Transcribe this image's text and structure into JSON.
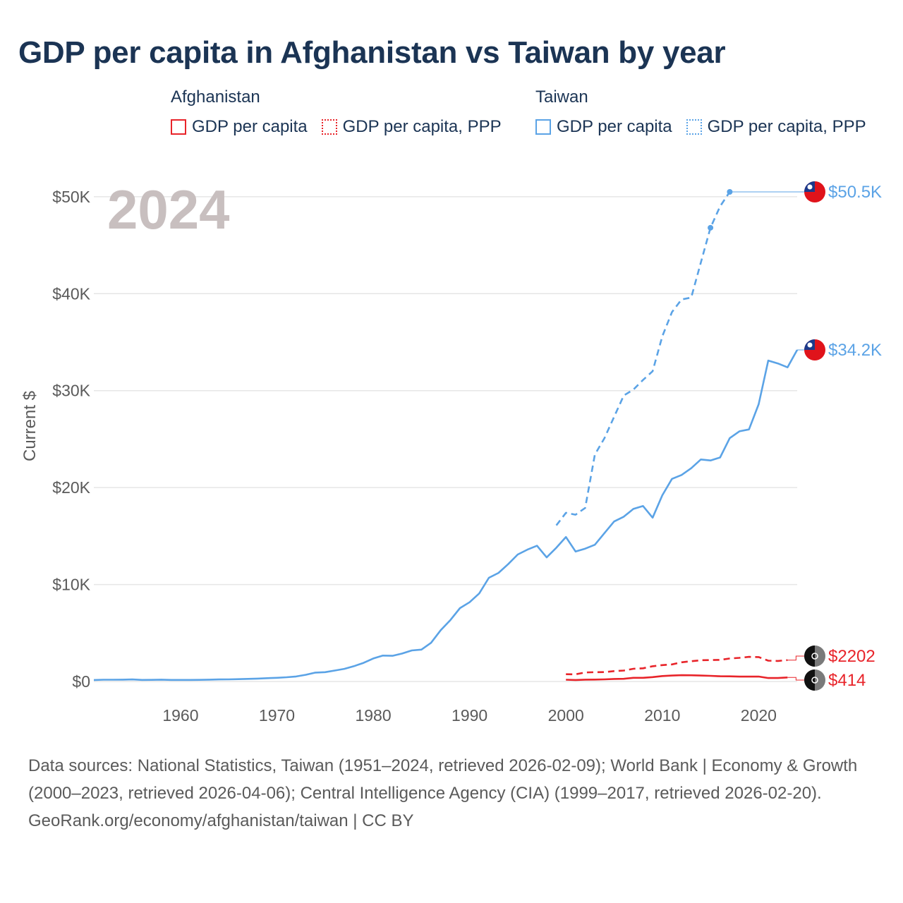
{
  "title": "GDP per capita in Afghanistan vs Taiwan by year",
  "legend": {
    "groups": [
      {
        "name": "Afghanistan",
        "color": "#e8242a",
        "items": [
          {
            "label": "GDP per capita",
            "style": "solid"
          },
          {
            "label": "GDP per capita, PPP",
            "style": "dotted"
          }
        ]
      },
      {
        "name": "Taiwan",
        "color": "#5ba3e6",
        "items": [
          {
            "label": "GDP per capita",
            "style": "solid"
          },
          {
            "label": "GDP per capita, PPP",
            "style": "dotted"
          }
        ]
      }
    ]
  },
  "chart_data": {
    "type": "line",
    "title": "GDP per capita in Afghanistan vs Taiwan by year",
    "ylabel": "Current $",
    "xlabel": "",
    "year_label": "2024",
    "xlim": [
      1951,
      2024
    ],
    "ylim": [
      0,
      50500
    ],
    "x_ticks": [
      1960,
      1970,
      1980,
      1990,
      2000,
      2010,
      2020
    ],
    "y_ticks": [
      0,
      10000,
      20000,
      30000,
      40000,
      50000
    ],
    "y_tick_labels": [
      "$0",
      "$10K",
      "$20K",
      "$30K",
      "$40K",
      "$50K"
    ],
    "grid": true,
    "series": [
      {
        "name": "Taiwan GDP per capita",
        "country": "Taiwan",
        "color": "#5ba3e6",
        "dash": "solid",
        "end_label": "$34.2K",
        "end_value": 34200,
        "points": [
          [
            1951,
            150
          ],
          [
            1952,
            180
          ],
          [
            1953,
            180
          ],
          [
            1954,
            190
          ],
          [
            1955,
            210
          ],
          [
            1956,
            160
          ],
          [
            1957,
            170
          ],
          [
            1958,
            190
          ],
          [
            1959,
            160
          ],
          [
            1960,
            160
          ],
          [
            1961,
            160
          ],
          [
            1962,
            170
          ],
          [
            1963,
            190
          ],
          [
            1964,
            210
          ],
          [
            1965,
            220
          ],
          [
            1966,
            240
          ],
          [
            1967,
            270
          ],
          [
            1968,
            300
          ],
          [
            1969,
            340
          ],
          [
            1970,
            380
          ],
          [
            1971,
            440
          ],
          [
            1972,
            520
          ],
          [
            1973,
            690
          ],
          [
            1974,
            920
          ],
          [
            1975,
            960
          ],
          [
            1976,
            1130
          ],
          [
            1977,
            1300
          ],
          [
            1978,
            1580
          ],
          [
            1979,
            1920
          ],
          [
            1980,
            2370
          ],
          [
            1981,
            2670
          ],
          [
            1982,
            2650
          ],
          [
            1983,
            2880
          ],
          [
            1984,
            3200
          ],
          [
            1985,
            3290
          ],
          [
            1986,
            3990
          ],
          [
            1987,
            5290
          ],
          [
            1988,
            6320
          ],
          [
            1989,
            7570
          ],
          [
            1990,
            8170
          ],
          [
            1991,
            9080
          ],
          [
            1992,
            10700
          ],
          [
            1993,
            11200
          ],
          [
            1994,
            12100
          ],
          [
            1995,
            13100
          ],
          [
            1996,
            13600
          ],
          [
            1997,
            14000
          ],
          [
            1998,
            12800
          ],
          [
            1999,
            13800
          ],
          [
            2000,
            14900
          ],
          [
            2001,
            13400
          ],
          [
            2002,
            13700
          ],
          [
            2003,
            14100
          ],
          [
            2004,
            15300
          ],
          [
            2005,
            16500
          ],
          [
            2006,
            17000
          ],
          [
            2007,
            17800
          ],
          [
            2008,
            18100
          ],
          [
            2009,
            16900
          ],
          [
            2010,
            19200
          ],
          [
            2011,
            20900
          ],
          [
            2012,
            21300
          ],
          [
            2013,
            22000
          ],
          [
            2014,
            22900
          ],
          [
            2015,
            22800
          ],
          [
            2016,
            23100
          ],
          [
            2017,
            25100
          ],
          [
            2018,
            25800
          ],
          [
            2019,
            26000
          ],
          [
            2020,
            28600
          ],
          [
            2021,
            33100
          ],
          [
            2022,
            32800
          ],
          [
            2023,
            32400
          ],
          [
            2024,
            34200
          ]
        ]
      },
      {
        "name": "Taiwan GDP per capita, PPP",
        "country": "Taiwan",
        "color": "#5ba3e6",
        "dash": "dashed",
        "end_label": "$50.5K",
        "end_value": 50500,
        "points": [
          [
            1999,
            16100
          ],
          [
            2000,
            17400
          ],
          [
            2001,
            17200
          ],
          [
            2002,
            17900
          ],
          [
            2003,
            23400
          ],
          [
            2004,
            25100
          ],
          [
            2005,
            27300
          ],
          [
            2006,
            29500
          ],
          [
            2007,
            30100
          ],
          [
            2008,
            31100
          ],
          [
            2009,
            32000
          ],
          [
            2010,
            35600
          ],
          [
            2011,
            38100
          ],
          [
            2012,
            39400
          ],
          [
            2013,
            39600
          ],
          [
            2014,
            43200
          ],
          [
            2015,
            46800
          ],
          [
            2016,
            49000
          ],
          [
            2017,
            50500
          ]
        ],
        "markers": [
          [
            2015,
            46800
          ],
          [
            2017,
            50500
          ]
        ]
      },
      {
        "name": "Afghanistan GDP per capita, PPP",
        "country": "Afghanistan",
        "color": "#e8242a",
        "dash": "dashed",
        "end_label": "$2202",
        "end_value": 2202,
        "points": [
          [
            2000,
            750
          ],
          [
            2001,
            740
          ],
          [
            2002,
            930
          ],
          [
            2003,
            960
          ],
          [
            2004,
            970
          ],
          [
            2005,
            1070
          ],
          [
            2006,
            1130
          ],
          [
            2007,
            1310
          ],
          [
            2008,
            1360
          ],
          [
            2009,
            1570
          ],
          [
            2010,
            1690
          ],
          [
            2011,
            1760
          ],
          [
            2012,
            1980
          ],
          [
            2013,
            2090
          ],
          [
            2014,
            2190
          ],
          [
            2015,
            2210
          ],
          [
            2016,
            2230
          ],
          [
            2017,
            2370
          ],
          [
            2018,
            2440
          ],
          [
            2019,
            2540
          ],
          [
            2020,
            2520
          ],
          [
            2021,
            2150
          ],
          [
            2022,
            2120
          ],
          [
            2023,
            2202
          ]
        ]
      },
      {
        "name": "Afghanistan GDP per capita",
        "country": "Afghanistan",
        "color": "#e8242a",
        "dash": "solid",
        "end_label": "$414",
        "end_value": 414,
        "points": [
          [
            2000,
            180
          ],
          [
            2001,
            150
          ],
          [
            2002,
            190
          ],
          [
            2003,
            200
          ],
          [
            2004,
            220
          ],
          [
            2005,
            260
          ],
          [
            2006,
            280
          ],
          [
            2007,
            380
          ],
          [
            2008,
            380
          ],
          [
            2009,
            450
          ],
          [
            2010,
            560
          ],
          [
            2011,
            610
          ],
          [
            2012,
            650
          ],
          [
            2013,
            640
          ],
          [
            2014,
            610
          ],
          [
            2015,
            580
          ],
          [
            2016,
            540
          ],
          [
            2017,
            530
          ],
          [
            2018,
            500
          ],
          [
            2019,
            500
          ],
          [
            2020,
            510
          ],
          [
            2021,
            360
          ],
          [
            2022,
            360
          ],
          [
            2023,
            414
          ]
        ]
      }
    ]
  },
  "footer": {
    "sources": "Data sources: National Statistics, Taiwan (1951–2024, retrieved 2026-02-09); World Bank | Economy & Growth (2000–2023, retrieved 2026-04-06); Central Intelligence Agency (CIA) (1999–2017, retrieved 2026-02-20).",
    "attribution": "GeoRank.org/economy/afghanistan/taiwan | CC BY"
  }
}
